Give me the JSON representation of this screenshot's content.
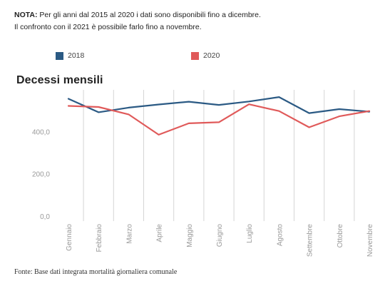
{
  "note": {
    "label": "NOTA:",
    "line1": "Per gli anni dal 2015 al 2020 i dati sono disponibili fino a dicembre.",
    "line2": "Il confronto con il 2021 è possibile farlo fino a novembre."
  },
  "title": "Decessi mensili",
  "footer": "Fonte: Base dati integrata mortalità giornaliera comunale",
  "colors": {
    "series_2018": "#2b5a84",
    "series_2020": "#e05a5a",
    "grid": "#d6d6d6",
    "tick": "#999999"
  },
  "chart_data": {
    "type": "line",
    "title": "Decessi mensili",
    "categories": [
      "Gennaio",
      "Febbraio",
      "Marzo",
      "Aprile",
      "Maggio",
      "Giugno",
      "Luglio",
      "Agosto",
      "Settembre",
      "Ottobre",
      "Novembre"
    ],
    "series": [
      {
        "name": "2018",
        "color": "#2b5a84",
        "values": [
          558,
          494,
          516,
          531,
          544,
          529,
          545,
          566,
          490,
          509,
          497
        ]
      },
      {
        "name": "2020",
        "color": "#e05a5a",
        "values": [
          524,
          519,
          484,
          388,
          442,
          447,
          532,
          500,
          423,
          475,
          500
        ]
      }
    ],
    "ylim": [
      0,
      600
    ],
    "yticks": [
      0,
      200,
      400
    ],
    "ytick_labels": [
      "0,0",
      "200,0",
      "400,0"
    ],
    "grid": true,
    "legend": "top-left"
  }
}
